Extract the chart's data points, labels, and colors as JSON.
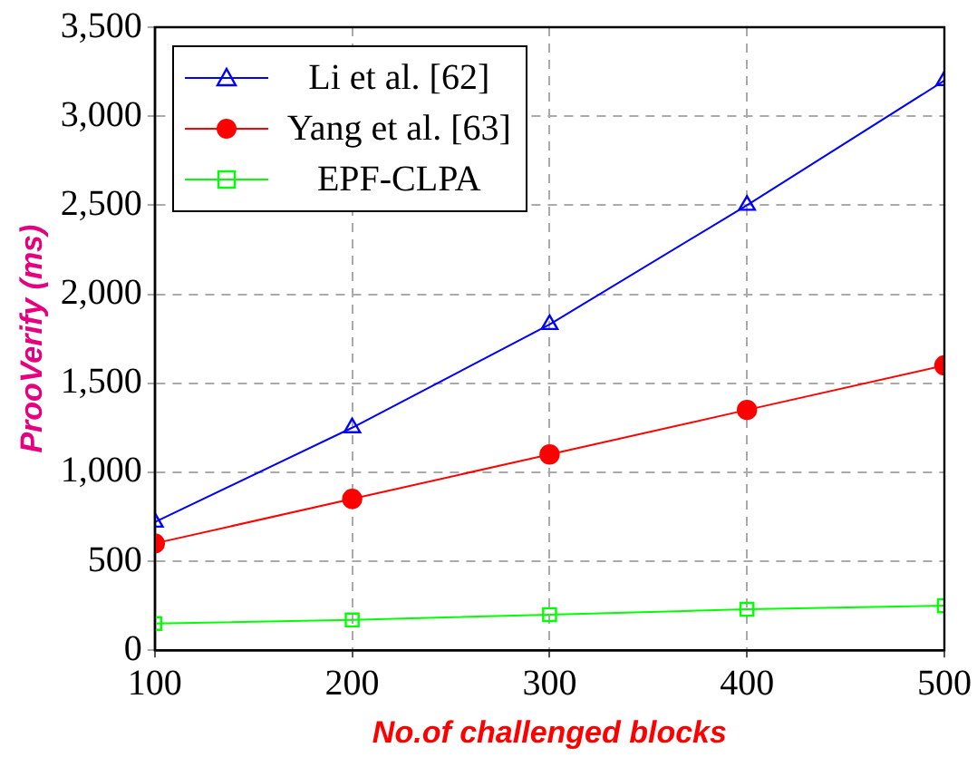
{
  "chart_data": {
    "type": "line",
    "xlabel": "No.of challenged blocks",
    "ylabel": "ProoVerify (ms)",
    "x": [
      100,
      200,
      300,
      400,
      500
    ],
    "series": [
      {
        "name": "Li et al. [62]",
        "color": "#0000ff",
        "marker": "triangle",
        "values": [
          720,
          1250,
          1830,
          2500,
          3200
        ]
      },
      {
        "name": "Yang et al. [63]",
        "color": "#ff0000",
        "marker": "circle",
        "values": [
          600,
          850,
          1100,
          1350,
          1600
        ]
      },
      {
        "name": "EPF-CLPA",
        "color": "#00ff00",
        "marker": "square",
        "values": [
          150,
          170,
          200,
          230,
          250
        ]
      }
    ],
    "xlim": [
      100,
      500
    ],
    "xticks": [
      100,
      200,
      300,
      400,
      500
    ],
    "ylim": [
      0,
      3500
    ],
    "yticks": [
      0,
      500,
      {
        "value": 1000,
        "label": "1,000"
      },
      {
        "value": 1500,
        "label": "1,500"
      },
      {
        "value": 2000,
        "label": "2,000"
      },
      {
        "value": 2500,
        "label": "2,500"
      },
      {
        "value": 3000,
        "label": "3,000"
      },
      {
        "value": 3500,
        "label": "3,500"
      }
    ],
    "grid": true,
    "legend": "top left",
    "line_style": "solid"
  }
}
